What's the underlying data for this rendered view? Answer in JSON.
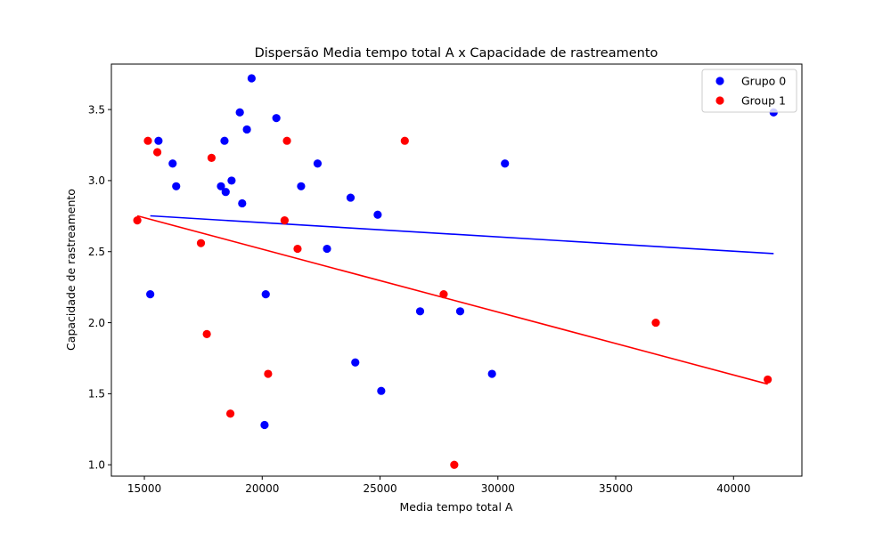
{
  "chart_data": {
    "type": "scatter",
    "title": "Dispersão Media tempo total A x Capacidade de rastreamento",
    "xlabel": "Media tempo total A",
    "ylabel": "Capacidade de rastreamento",
    "xlim": [
      13600,
      42900
    ],
    "ylim": [
      0.92,
      3.82
    ],
    "xticks": [
      15000,
      20000,
      25000,
      30000,
      35000,
      40000
    ],
    "yticks": [
      1.0,
      1.5,
      2.0,
      2.5,
      3.0,
      3.5
    ],
    "ytick_format": 1,
    "grid": false,
    "legend_position": "top-right",
    "series": [
      {
        "name": "Grupo 0",
        "color": "#0000ff",
        "x": [
          15250,
          15600,
          16200,
          16350,
          18250,
          18450,
          18400,
          18700,
          19050,
          19150,
          19350,
          19550,
          20150,
          20100,
          20600,
          21650,
          22350,
          22750,
          23750,
          23950,
          24900,
          25050,
          26700,
          28400,
          29750,
          30300,
          41700
        ],
        "y": [
          2.2,
          3.28,
          3.12,
          2.96,
          2.96,
          2.92,
          3.28,
          3.0,
          3.48,
          2.84,
          3.36,
          3.72,
          2.2,
          1.28,
          3.44,
          2.96,
          3.12,
          2.52,
          2.88,
          1.72,
          2.76,
          1.52,
          2.08,
          2.08,
          1.64,
          3.12,
          3.48
        ],
        "trendline": {
          "x": [
            15250,
            41700
          ],
          "y": [
            2.752,
            2.486
          ]
        }
      },
      {
        "name": "Group 1",
        "color": "#ff0000",
        "x": [
          14700,
          15150,
          15550,
          17400,
          17650,
          17850,
          18650,
          20250,
          20950,
          21050,
          21500,
          26050,
          27700,
          28150,
          36700,
          41450
        ],
        "y": [
          2.72,
          3.28,
          3.2,
          2.56,
          1.92,
          3.16,
          1.36,
          1.64,
          2.72,
          3.28,
          2.52,
          3.28,
          2.2,
          1.0,
          2.0,
          1.6
        ],
        "trendline": {
          "x": [
            14700,
            41450
          ],
          "y": [
            2.752,
            1.568
          ]
        }
      }
    ]
  }
}
